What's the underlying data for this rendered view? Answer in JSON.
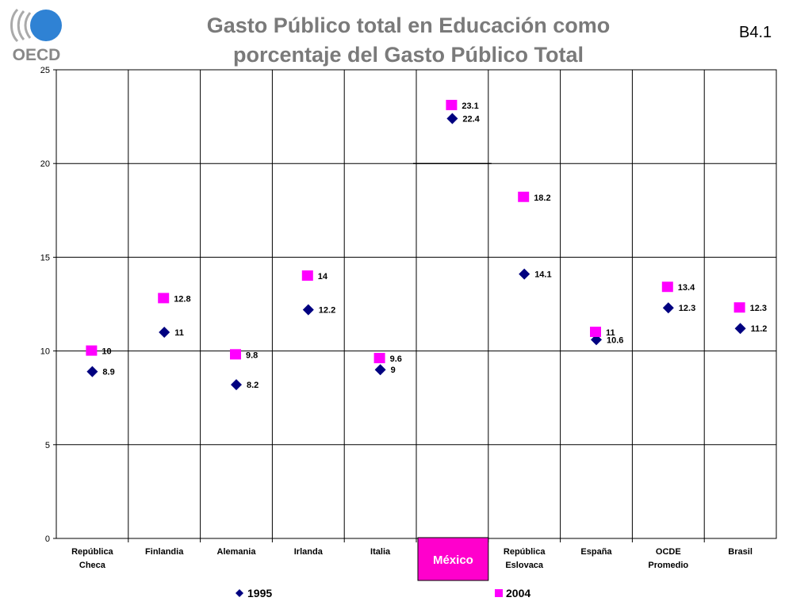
{
  "logo": {
    "text": "OECD",
    "icon": "oecd-logo"
  },
  "title_line1": "Gasto Público total en Educación como",
  "title_line2": "porcentaje del Gasto Público Total",
  "code": "B4.1",
  "colors": {
    "series_1995": "#000080",
    "series_2004": "#ff00ff",
    "highlight": "#ff00cc",
    "title": "#7a7a7a"
  },
  "chart_data": {
    "type": "scatter",
    "title": "Gasto Público total en Educación como porcentaje del Gasto Público Total",
    "xlabel": "",
    "ylabel": "",
    "ylim": [
      0,
      25
    ],
    "yticks": [
      "0",
      "5",
      "10",
      "15",
      "20",
      "25"
    ],
    "grid": true,
    "legend_position": "bottom",
    "categories": [
      [
        "República",
        "Checa"
      ],
      [
        "Finlandia"
      ],
      [
        "Alemania"
      ],
      [
        "Irlanda"
      ],
      [
        "Italia"
      ],
      [
        ""
      ],
      [
        "República",
        "Eslovaca"
      ],
      [
        "España"
      ],
      [
        "OCDE",
        "Promedio"
      ],
      [
        "Brasil"
      ]
    ],
    "highlight_category_index": 5,
    "highlight_label": "México",
    "series": [
      {
        "name": "1995",
        "marker": "diamond",
        "color": "#000080",
        "values": [
          8.9,
          11,
          8.2,
          12.2,
          9,
          22.4,
          14.1,
          10.6,
          12.3,
          11.2
        ],
        "labels": [
          "8.9",
          "11",
          "8.2",
          "12.2",
          "9",
          "22.4",
          "14.1",
          "10.6",
          "12.3",
          "11.2"
        ]
      },
      {
        "name": "2004",
        "marker": "square",
        "color": "#ff00ff",
        "values": [
          10,
          12.8,
          9.8,
          14,
          9.6,
          23.1,
          18.2,
          11,
          13.4,
          12.3
        ],
        "labels": [
          "10",
          "12.8",
          "9.8",
          "14",
          "9.6",
          "23.1",
          "18.2",
          "11",
          "13.4",
          "12.3"
        ]
      }
    ]
  }
}
